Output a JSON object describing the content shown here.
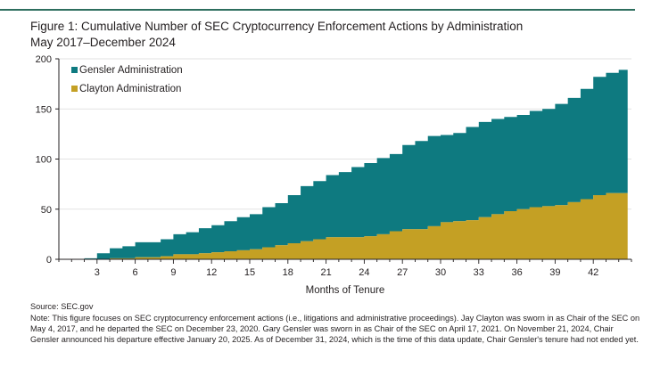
{
  "figure": {
    "title": "Figure 1: Cumulative Number of SEC Cryptocurrency Enforcement Actions by Administration",
    "subtitle": "May 2017–December 2024",
    "source": "Source: SEC.gov",
    "note": "Note: This figure focuses on SEC cryptocurrency enforcement actions (i.e., litigations and administrative proceedings). Jay Clayton was sworn in as Chair of the SEC on May 4, 2017, and he departed the SEC on December 23, 2020. Gary Gensler was sworn in as Chair of the SEC on April 17, 2021. On November 21, 2024, Chair Gensler announced his departure effective January 20, 2025. As of December 31, 2024, which is the time of this data update, Chair Gensler's tenure had not ended yet."
  },
  "colors": {
    "gensler": "#0e7a80",
    "clayton": "#c4a024",
    "rule": "#2d6e5e",
    "axis": "#231f20"
  },
  "chart_data": {
    "type": "area",
    "stacked": true,
    "xlabel": "Months of Tenure",
    "ylabel": "",
    "xlim": [
      0,
      45
    ],
    "ylim": [
      0,
      200
    ],
    "yticks": [
      0,
      50,
      100,
      150,
      200
    ],
    "xticks": [
      3,
      6,
      9,
      12,
      15,
      18,
      21,
      24,
      27,
      30,
      33,
      36,
      39,
      42
    ],
    "legend": {
      "placement": "top-left",
      "entries": [
        "Gensler Administration",
        "Clayton Administration"
      ]
    },
    "x": [
      0,
      1,
      2,
      3,
      4,
      5,
      6,
      7,
      8,
      9,
      10,
      11,
      12,
      13,
      14,
      15,
      16,
      17,
      18,
      19,
      20,
      21,
      22,
      23,
      24,
      25,
      26,
      27,
      28,
      29,
      30,
      31,
      32,
      33,
      34,
      35,
      36,
      37,
      38,
      39,
      40,
      41,
      42,
      43,
      44,
      44.7
    ],
    "series": [
      {
        "name": "Clayton Administration",
        "values": [
          0,
          0,
          0,
          0,
          1,
          1,
          2,
          2,
          3,
          5,
          5,
          6,
          7,
          8,
          9,
          10,
          12,
          14,
          16,
          18,
          20,
          22,
          22,
          22,
          23,
          25,
          28,
          30,
          30,
          33,
          37,
          38,
          39,
          42,
          45,
          48,
          50,
          52,
          53,
          54,
          57,
          60,
          64,
          66,
          66,
          70
        ]
      },
      {
        "name": "Gensler Administration",
        "values": [
          0,
          0,
          1,
          6,
          10,
          12,
          15,
          15,
          17,
          20,
          22,
          25,
          27,
          30,
          33,
          35,
          40,
          42,
          48,
          55,
          58,
          62,
          65,
          70,
          73,
          76,
          77,
          84,
          88,
          90,
          87,
          88,
          93,
          95,
          95,
          94,
          94,
          96,
          97,
          101,
          104,
          110,
          118,
          120,
          123,
          125
        ]
      }
    ]
  }
}
